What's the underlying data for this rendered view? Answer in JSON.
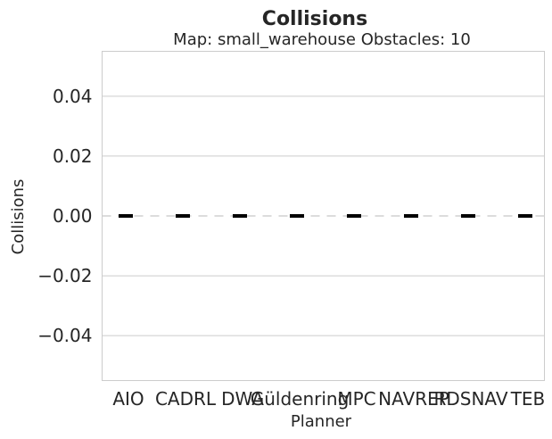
{
  "chart_data": {
    "type": "box",
    "title": "Collisions",
    "subtitle": "Map: small_warehouse Obstacles: 10",
    "xlabel": "Planner",
    "ylabel": "Collisions",
    "categories": [
      "AIO",
      "CADRL",
      "DWA",
      "Güldenring",
      "MPC",
      "NAVREP",
      "RDSNAV",
      "TEB"
    ],
    "values": [
      0,
      0,
      0,
      0,
      0,
      0,
      0,
      0
    ],
    "ylim": [
      -0.055,
      0.055
    ],
    "yticks": [
      -0.04,
      -0.02,
      0.0,
      0.02,
      0.04
    ],
    "ytick_labels": [
      "−0.04",
      "−0.02",
      "0.00",
      "0.02",
      "0.04"
    ],
    "grid": true,
    "colors": {
      "median": "#000000",
      "grid": "#cccccc",
      "text": "#262626"
    }
  }
}
